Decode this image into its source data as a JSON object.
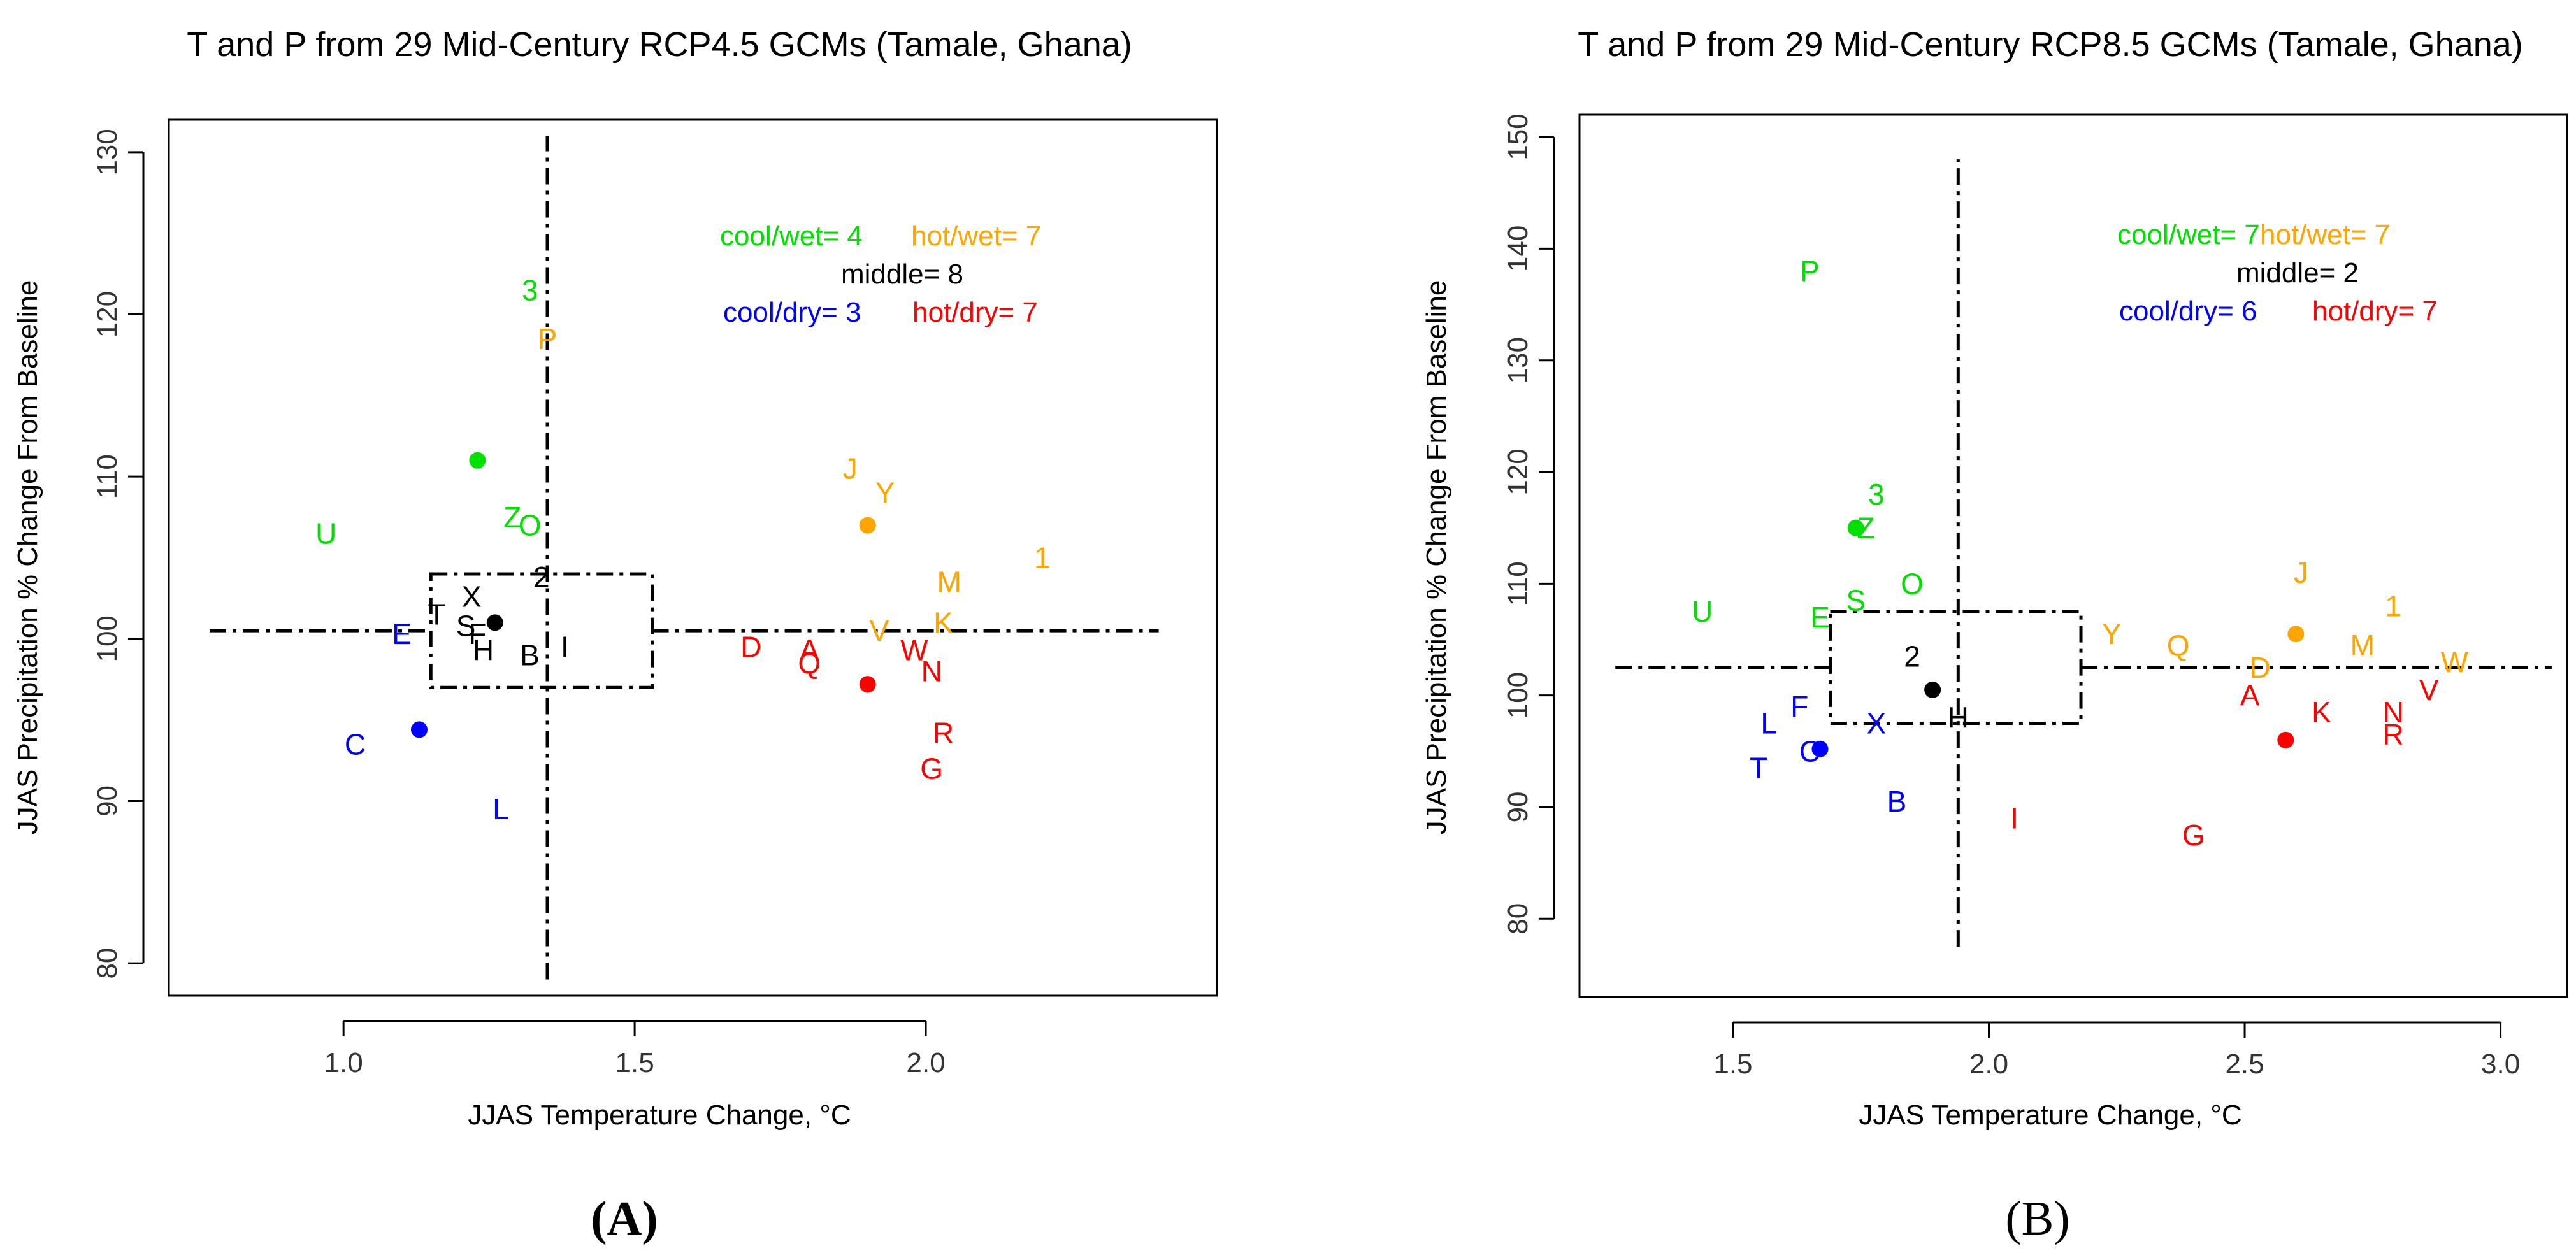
{
  "chart_data": [
    {
      "type": "scatter",
      "panel_label": "(A)",
      "title": "T and P from 29 Mid-Century RCP4.5 GCMs (Tamale, Ghana)",
      "xlabel": "JJAS Temperature Change, °C",
      "ylabel": "JJAS Precipitation % Change From Baseline",
      "xlim": [
        0.7,
        2.5
      ],
      "ylim": [
        78,
        132
      ],
      "xticks": [
        "1.0",
        "1.5",
        "2.0"
      ],
      "yticks": [
        "80",
        "90",
        "100",
        "110",
        "120",
        "130"
      ],
      "divider_x": 1.35,
      "divider_y": 100.5,
      "divider_x_range": [
        79,
        131
      ],
      "divider_y_range": [
        0.77,
        2.4
      ],
      "middle_box": {
        "x": [
          1.15,
          1.53
        ],
        "y": [
          97,
          104
        ]
      },
      "counts": [
        {
          "text": "cool/wet= 4",
          "color": "#00e000"
        },
        {
          "text": "hot/wet= 7",
          "color": "#ffa500"
        },
        {
          "text": "middle= 8",
          "color": "#000000"
        },
        {
          "text": "cool/dry= 3",
          "color": "#0000ff"
        },
        {
          "text": "hot/dry= 7",
          "color": "#ff0000"
        }
      ],
      "centroids": [
        {
          "group": "cool/wet",
          "x": 1.23,
          "y": 111,
          "color": "#00e000"
        },
        {
          "group": "hot/wet",
          "x": 1.9,
          "y": 107,
          "color": "#ffa500"
        },
        {
          "group": "middle",
          "x": 1.26,
          "y": 101,
          "color": "#000000"
        },
        {
          "group": "cool/dry",
          "x": 1.13,
          "y": 94.4,
          "color": "#0000ff"
        },
        {
          "group": "hot/dry",
          "x": 1.9,
          "y": 97.2,
          "color": "#ff0000"
        }
      ],
      "points": [
        {
          "label": "3",
          "x": 1.32,
          "y": 121.5,
          "color": "#00e000"
        },
        {
          "label": "U",
          "x": 0.97,
          "y": 106.5,
          "color": "#00e000"
        },
        {
          "label": "Z",
          "x": 1.29,
          "y": 107.5,
          "color": "#00e000"
        },
        {
          "label": "O",
          "x": 1.32,
          "y": 107,
          "color": "#00e000"
        },
        {
          "label": "P",
          "x": 1.35,
          "y": 118.5,
          "color": "#ffa500"
        },
        {
          "label": "J",
          "x": 1.87,
          "y": 110.5,
          "color": "#ffa500"
        },
        {
          "label": "Y",
          "x": 1.93,
          "y": 109,
          "color": "#ffa500"
        },
        {
          "label": "1",
          "x": 2.2,
          "y": 105,
          "color": "#ffa500"
        },
        {
          "label": "M",
          "x": 2.04,
          "y": 103.5,
          "color": "#ffa500"
        },
        {
          "label": "K",
          "x": 2.03,
          "y": 101,
          "color": "#ffa500"
        },
        {
          "label": "V",
          "x": 1.92,
          "y": 100.5,
          "color": "#ffa500"
        },
        {
          "label": "2",
          "x": 1.34,
          "y": 103.8,
          "color": "#000000"
        },
        {
          "label": "X",
          "x": 1.22,
          "y": 102.6,
          "color": "#000000"
        },
        {
          "label": "T",
          "x": 1.16,
          "y": 101.5,
          "color": "#000000"
        },
        {
          "label": "S",
          "x": 1.21,
          "y": 100.8,
          "color": "#000000"
        },
        {
          "label": "F",
          "x": 1.23,
          "y": 100.3,
          "color": "#000000"
        },
        {
          "label": "H",
          "x": 1.24,
          "y": 99.3,
          "color": "#000000"
        },
        {
          "label": "B",
          "x": 1.32,
          "y": 99,
          "color": "#000000"
        },
        {
          "label": "I",
          "x": 1.38,
          "y": 99.5,
          "color": "#000000"
        },
        {
          "label": "E",
          "x": 1.1,
          "y": 100.3,
          "color": "#0000ff"
        },
        {
          "label": "C",
          "x": 1.02,
          "y": 93.5,
          "color": "#0000ff"
        },
        {
          "label": "L",
          "x": 1.27,
          "y": 89.5,
          "color": "#0000ff"
        },
        {
          "label": "D",
          "x": 1.7,
          "y": 99.5,
          "color": "#ff0000"
        },
        {
          "label": "A",
          "x": 1.8,
          "y": 99.3,
          "color": "#ff0000"
        },
        {
          "label": "Q",
          "x": 1.8,
          "y": 98.5,
          "color": "#ff0000"
        },
        {
          "label": "W",
          "x": 1.98,
          "y": 99.3,
          "color": "#ff0000"
        },
        {
          "label": "N",
          "x": 2.01,
          "y": 98,
          "color": "#ff0000"
        },
        {
          "label": "R",
          "x": 2.03,
          "y": 94.2,
          "color": "#ff0000"
        },
        {
          "label": "G",
          "x": 2.01,
          "y": 92,
          "color": "#ff0000"
        }
      ]
    },
    {
      "type": "scatter",
      "panel_label": "(B)",
      "title": "T and P from 29 Mid-Century RCP8.5 GCMs (Tamale, Ghana)",
      "xlabel": "JJAS Temperature Change, °C",
      "ylabel": "JJAS Precipitation % Change From Baseline",
      "xlim": [
        1.2,
        3.13
      ],
      "ylim": [
        73,
        152
      ],
      "xticks": [
        "1.5",
        "2.0",
        "2.5",
        "3.0"
      ],
      "yticks": [
        "80",
        "90",
        "100",
        "110",
        "120",
        "130",
        "140",
        "150"
      ],
      "divider_x": 1.94,
      "divider_y": 102.5,
      "divider_x_range": [
        77.5,
        148
      ],
      "divider_y_range": [
        1.27,
        3.1
      ],
      "middle_box": {
        "x": [
          1.69,
          2.18
        ],
        "y": [
          97.5,
          107.5
        ]
      },
      "counts": [
        {
          "text": "cool/wet= 7",
          "color": "#00e000"
        },
        {
          "text": "hot/wet= 7",
          "color": "#ffa500"
        },
        {
          "text": "middle= 2",
          "color": "#000000"
        },
        {
          "text": "cool/dry= 6",
          "color": "#0000ff"
        },
        {
          "text": "hot/dry= 7",
          "color": "#ff0000"
        }
      ],
      "centroids": [
        {
          "group": "cool/wet",
          "x": 1.74,
          "y": 115,
          "color": "#00e000"
        },
        {
          "group": "hot/wet",
          "x": 2.6,
          "y": 105.5,
          "color": "#ffa500"
        },
        {
          "group": "middle",
          "x": 1.89,
          "y": 100.5,
          "color": "#000000"
        },
        {
          "group": "cool/dry",
          "x": 1.67,
          "y": 95.2,
          "color": "#0000ff"
        },
        {
          "group": "hot/dry",
          "x": 2.58,
          "y": 96,
          "color": "#ff0000"
        }
      ],
      "points": [
        {
          "label": "P",
          "x": 1.65,
          "y": 138,
          "color": "#00e000"
        },
        {
          "label": "3",
          "x": 1.78,
          "y": 118,
          "color": "#00e000"
        },
        {
          "label": "Z",
          "x": 1.76,
          "y": 115,
          "color": "#00e000"
        },
        {
          "label": "O",
          "x": 1.85,
          "y": 110,
          "color": "#00e000"
        },
        {
          "label": "U",
          "x": 1.44,
          "y": 107.5,
          "color": "#00e000"
        },
        {
          "label": "S",
          "x": 1.74,
          "y": 108.5,
          "color": "#00e000"
        },
        {
          "label": "E",
          "x": 1.67,
          "y": 107,
          "color": "#00e000"
        },
        {
          "label": "J",
          "x": 2.61,
          "y": 111,
          "color": "#ffa500"
        },
        {
          "label": "1",
          "x": 2.79,
          "y": 108,
          "color": "#ffa500"
        },
        {
          "label": "Y",
          "x": 2.24,
          "y": 105.5,
          "color": "#ffa500"
        },
        {
          "label": "Q",
          "x": 2.37,
          "y": 104.5,
          "color": "#ffa500"
        },
        {
          "label": "M",
          "x": 2.73,
          "y": 104.5,
          "color": "#ffa500"
        },
        {
          "label": "D",
          "x": 2.53,
          "y": 102.5,
          "color": "#ffa500"
        },
        {
          "label": "W",
          "x": 2.91,
          "y": 103,
          "color": "#ffa500"
        },
        {
          "label": "2",
          "x": 1.85,
          "y": 103.5,
          "color": "#000000"
        },
        {
          "label": "H",
          "x": 1.94,
          "y": 98,
          "color": "#000000"
        },
        {
          "label": "F",
          "x": 1.63,
          "y": 99,
          "color": "#0000ff"
        },
        {
          "label": "L",
          "x": 1.57,
          "y": 97.5,
          "color": "#0000ff"
        },
        {
          "label": "X",
          "x": 1.78,
          "y": 97.5,
          "color": "#0000ff"
        },
        {
          "label": "C",
          "x": 1.65,
          "y": 95,
          "color": "#0000ff"
        },
        {
          "label": "T",
          "x": 1.55,
          "y": 93.5,
          "color": "#0000ff"
        },
        {
          "label": "B",
          "x": 1.82,
          "y": 90.5,
          "color": "#0000ff"
        },
        {
          "label": "V",
          "x": 2.86,
          "y": 100.5,
          "color": "#ff0000"
        },
        {
          "label": "A",
          "x": 2.51,
          "y": 100,
          "color": "#ff0000"
        },
        {
          "label": "K",
          "x": 2.65,
          "y": 98.5,
          "color": "#ff0000"
        },
        {
          "label": "N",
          "x": 2.79,
          "y": 98.5,
          "color": "#ff0000"
        },
        {
          "label": "R",
          "x": 2.79,
          "y": 96.5,
          "color": "#ff0000"
        },
        {
          "label": "I",
          "x": 2.05,
          "y": 89,
          "color": "#ff0000"
        },
        {
          "label": "G",
          "x": 2.4,
          "y": 87.5,
          "color": "#ff0000"
        }
      ]
    }
  ]
}
